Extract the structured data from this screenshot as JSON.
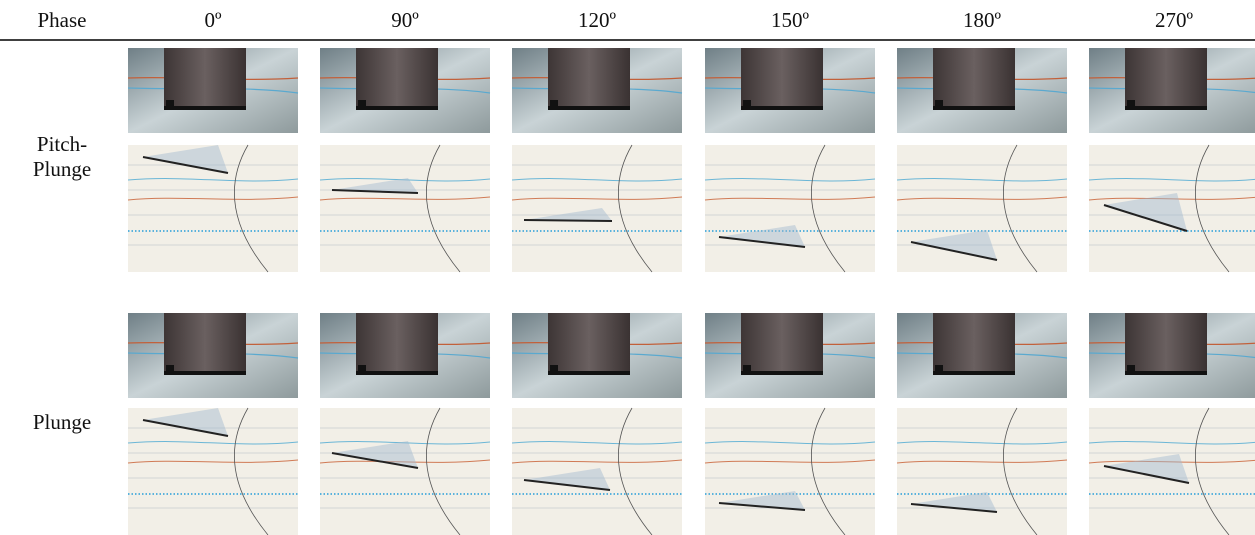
{
  "header": {
    "phase": "Phase",
    "columns": [
      "0º",
      "90º",
      "120º",
      "150º",
      "180º",
      "270º"
    ]
  },
  "rows": [
    {
      "label": "Pitch-Plunge"
    },
    {
      "label": "Plunge"
    }
  ]
}
